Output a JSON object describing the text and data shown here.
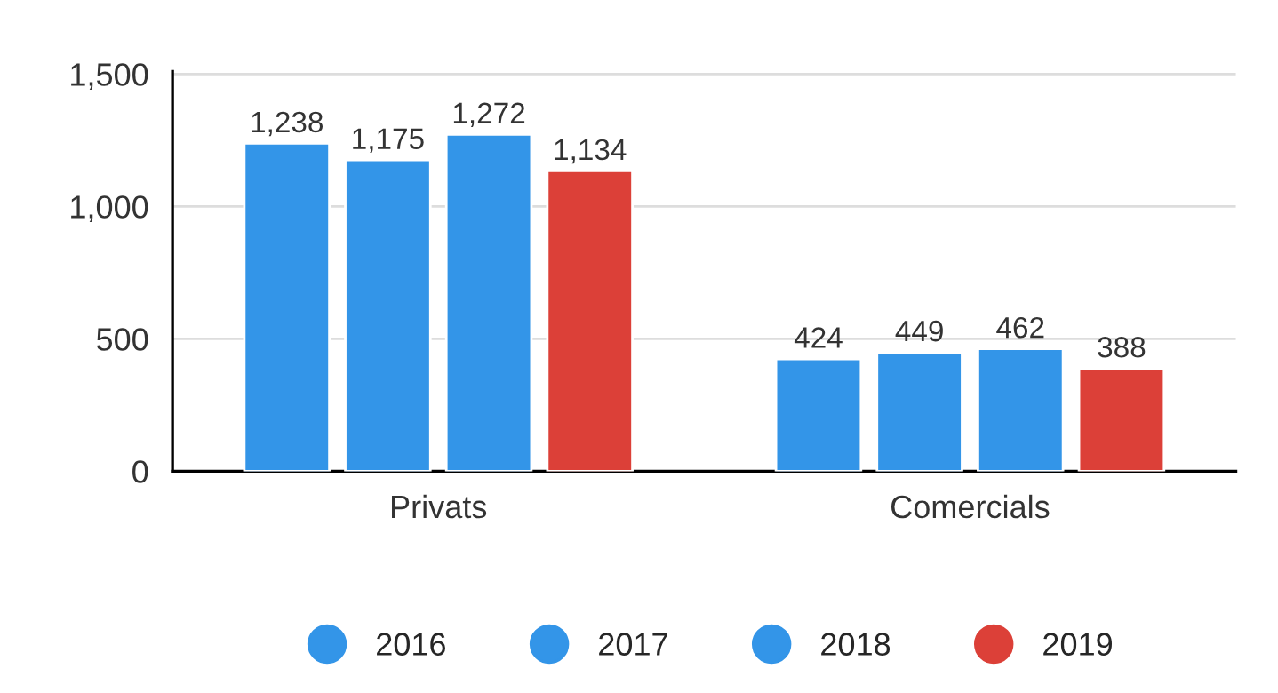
{
  "chart_data": {
    "type": "bar",
    "categories": [
      "Privats",
      "Comercials"
    ],
    "series": [
      {
        "name": "2016",
        "color": "#3395e8",
        "values": [
          1238,
          424
        ],
        "value_labels": [
          "1,238",
          "424"
        ]
      },
      {
        "name": "2017",
        "color": "#3395e8",
        "values": [
          1175,
          449
        ],
        "value_labels": [
          "1,175",
          "449"
        ]
      },
      {
        "name": "2018",
        "color": "#3395e8",
        "values": [
          1272,
          462
        ],
        "value_labels": [
          "1,272",
          "462"
        ]
      },
      {
        "name": "2019",
        "color": "#dc4038",
        "values": [
          1134,
          388
        ],
        "value_labels": [
          "1,134",
          "388"
        ]
      }
    ],
    "ylim": [
      0,
      1510
    ],
    "yticks": [
      0,
      500,
      {
        "value": 1000,
        "label": "1,000"
      },
      {
        "value": 1500,
        "label": "1,500"
      }
    ],
    "grid": "y",
    "legend": "bottom"
  }
}
